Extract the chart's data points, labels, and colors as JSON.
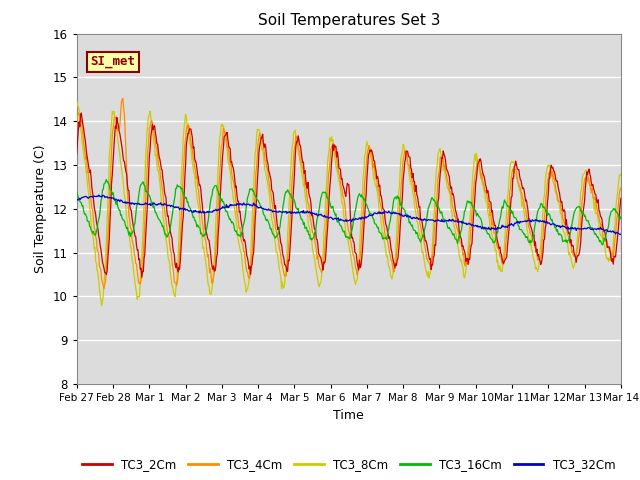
{
  "title": "Soil Temperatures Set 3",
  "xlabel": "Time",
  "ylabel": "Soil Temperature (C)",
  "ylim": [
    8.0,
    16.0
  ],
  "yticks": [
    8.0,
    9.0,
    10.0,
    11.0,
    12.0,
    13.0,
    14.0,
    15.0,
    16.0
  ],
  "bg_color": "#dcdcdc",
  "series_colors": {
    "TC3_2Cm": "#cc0000",
    "TC3_4Cm": "#ff8c00",
    "TC3_8Cm": "#cccc00",
    "TC3_16Cm": "#00bb00",
    "TC3_32Cm": "#0000cc"
  },
  "annotation_text": "SI_met",
  "annotation_color": "#8b0000",
  "annotation_bg": "#ffffaa",
  "annotation_border": "#8b0000",
  "xtick_labels": [
    "Feb 27",
    "Feb 28",
    "Mar 1",
    "Mar 2",
    "Mar 3",
    "Mar 4",
    "Mar 5",
    "Mar 6",
    "Mar 7",
    "Mar 8",
    "Mar 9",
    "Mar 10",
    "Mar 11",
    "Mar 12",
    "Mar 13",
    "Mar 14"
  ],
  "legend_labels": [
    "TC3_2Cm",
    "TC3_4Cm",
    "TC3_8Cm",
    "TC3_16Cm",
    "TC3_32Cm"
  ]
}
